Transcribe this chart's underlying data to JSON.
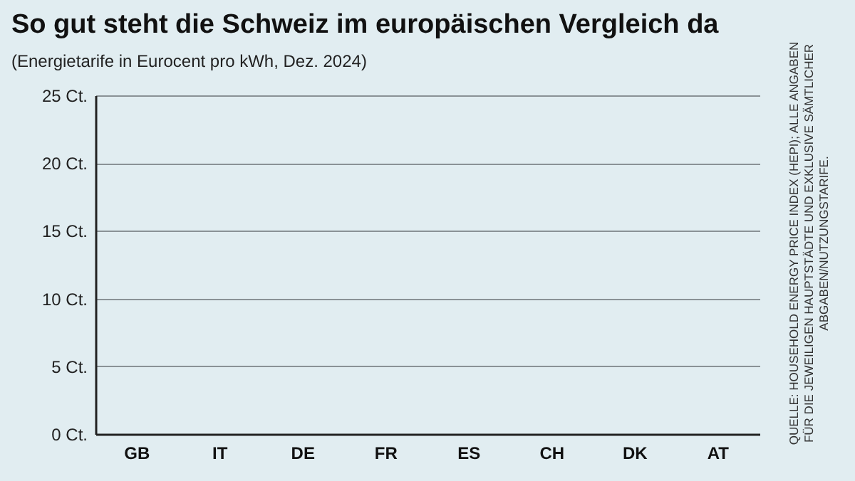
{
  "chart_data": {
    "type": "bar",
    "title": "So gut steht die Schweiz im europäischen Vergleich da",
    "subtitle": "(Energietarife in Eurocent pro kWh, Dez. 2024)",
    "categories": [
      "GB",
      "IT",
      "DE",
      "FR",
      "ES",
      "CH",
      "DK",
      "AT"
    ],
    "values": [
      null,
      null,
      null,
      null,
      null,
      null,
      null,
      null
    ],
    "ylim": [
      0,
      25
    ],
    "yticks": [
      {
        "value": 0,
        "label": "0 Ct."
      },
      {
        "value": 5,
        "label": "5 Ct."
      },
      {
        "value": 10,
        "label": "10 Ct."
      },
      {
        "value": 15,
        "label": "15 Ct."
      },
      {
        "value": 20,
        "label": "20 Ct."
      },
      {
        "value": 25,
        "label": "25 Ct."
      }
    ],
    "grid": "y",
    "annotations": [
      "QUELLE: HOUSEHOLD ENERGY PRICE INDEX (HEPI); ALLE ANGABEN FÜR DIE JEWEILIGEN HAUPTSTÄDTE UND EXKLUSIVE SÄMTLICHER ABGABEN/NUTZUNGSTARIFE."
    ]
  }
}
